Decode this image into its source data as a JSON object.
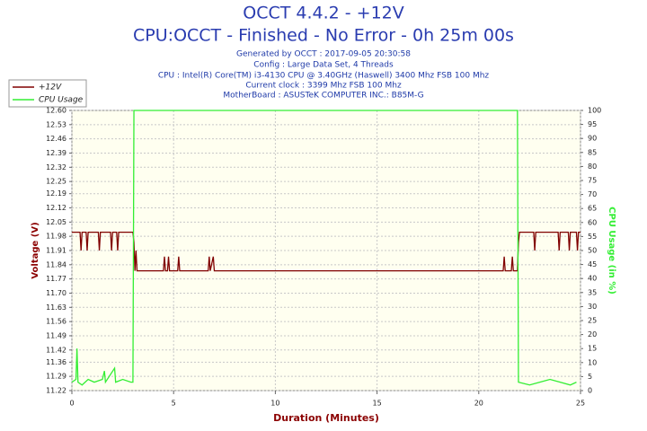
{
  "chart_data": {
    "type": "line",
    "title": "OCCT 4.4.2 - +12V",
    "subtitle": "CPU:OCCT - Finished - No Error - 0h 25m 00s",
    "info": [
      "Generated by OCCT : 2017-09-05 20:30:58",
      "Config : Large Data Set, 4 Threads",
      "CPU : Intel(R) Core(TM) i3-4130 CPU @ 3.40GHz (Haswell) 3400 Mhz FSB 100 Mhz",
      "Current clock : 3399 Mhz FSB 100 Mhz",
      "MotherBoard : ASUSTeK COMPUTER INC.: B85M-G"
    ],
    "xlabel": "Duration (Minutes)",
    "ylabel": "Voltage (V)",
    "y2label": "CPU Usage (in %)",
    "xlim": [
      0,
      25
    ],
    "xticks": [
      0,
      5,
      10,
      15,
      20,
      25
    ],
    "ylim": [
      11.22,
      12.6
    ],
    "yticks": [
      11.22,
      11.29,
      11.36,
      11.42,
      11.49,
      11.56,
      11.63,
      {
        "value": 11.7,
        "label": "11.70"
      },
      11.77,
      11.84,
      11.91,
      11.98,
      12.05,
      12.12,
      12.19,
      12.25,
      12.32,
      12.39,
      12.46,
      12.53,
      {
        "value": 12.6,
        "label": "12.60"
      }
    ],
    "y2lim": [
      0,
      100
    ],
    "y2ticks": [
      0,
      5,
      10,
      15,
      20,
      25,
      30,
      35,
      40,
      45,
      50,
      55,
      60,
      65,
      70,
      75,
      80,
      85,
      90,
      95,
      100
    ],
    "grid": true,
    "legend": "top-left",
    "series": [
      {
        "name": "+12V",
        "color": "#800000",
        "x": [
          0,
          0.4,
          0.45,
          0.5,
          0.7,
          0.75,
          0.8,
          1.3,
          1.35,
          1.4,
          1.9,
          1.95,
          2.0,
          2.2,
          2.25,
          2.3,
          3.0,
          3.05,
          3.1,
          3.15,
          3.2,
          4.5,
          4.55,
          4.6,
          4.7,
          4.75,
          4.8,
          5.2,
          5.25,
          5.3,
          6.7,
          6.75,
          6.8,
          6.95,
          7.0,
          21.2,
          21.25,
          21.3,
          21.6,
          21.65,
          21.7,
          21.9,
          21.95,
          22.0,
          22.7,
          22.75,
          22.8,
          23.9,
          23.95,
          24.0,
          24.4,
          24.45,
          24.5,
          24.8,
          24.85,
          24.9,
          25
        ],
        "values": [
          12.0,
          12.0,
          11.91,
          12.0,
          12.0,
          11.91,
          12.0,
          12.0,
          11.91,
          12.0,
          12.0,
          11.91,
          12.0,
          12.0,
          11.91,
          12.0,
          12.0,
          11.95,
          11.81,
          11.91,
          11.81,
          11.81,
          11.88,
          11.81,
          11.81,
          11.88,
          11.81,
          11.81,
          11.88,
          11.81,
          11.81,
          11.88,
          11.81,
          11.88,
          11.81,
          11.81,
          11.88,
          11.81,
          11.81,
          11.88,
          11.81,
          11.81,
          11.95,
          12.0,
          12.0,
          11.91,
          12.0,
          12.0,
          11.91,
          12.0,
          12.0,
          11.91,
          12.0,
          12.0,
          11.91,
          12.0,
          12.0
        ]
      },
      {
        "name": "CPU Usage",
        "color": "#33ee33",
        "axis": "y2",
        "x": [
          0,
          0.2,
          0.25,
          0.3,
          0.5,
          0.8,
          1.1,
          1.5,
          1.6,
          1.65,
          2.1,
          2.15,
          2.5,
          2.9,
          3.0,
          3.05,
          21.9,
          21.95,
          22.5,
          23.0,
          23.5,
          24.0,
          24.5,
          24.8
        ],
        "values": [
          3,
          4,
          15,
          3,
          2,
          4,
          3,
          4,
          7,
          3,
          8,
          3,
          4,
          3,
          3,
          100,
          100,
          3,
          2,
          3,
          4,
          3,
          2,
          3
        ]
      }
    ]
  }
}
